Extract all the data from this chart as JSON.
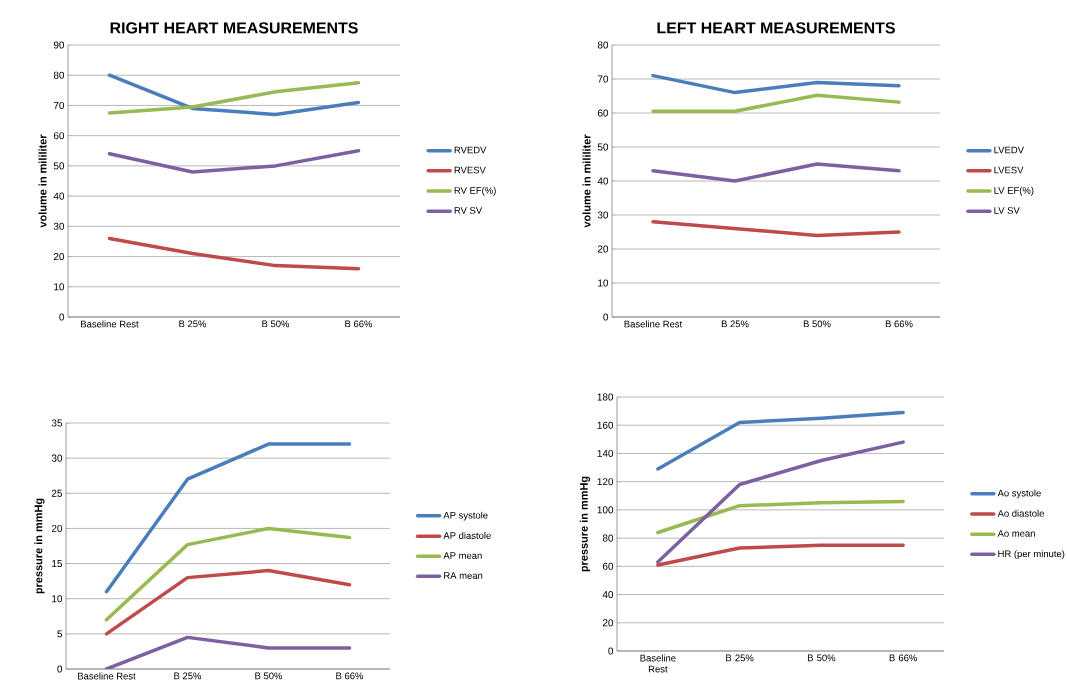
{
  "chart_data": [
    {
      "type": "line",
      "title": "RIGHT HEART MEASUREMENTS",
      "ylabel": "volume in mililiter",
      "categories": [
        "Baseline Rest",
        "B 25%",
        "B 50%",
        "B 66%"
      ],
      "ylim": [
        0,
        90
      ],
      "yticks": [
        0,
        10,
        20,
        30,
        40,
        50,
        60,
        70,
        80,
        90
      ],
      "grid": "y",
      "legend": "right",
      "marker": "none",
      "line_style": "solid",
      "series": [
        {
          "name": "RVEDV",
          "color": "#4a7ebb",
          "values": [
            80,
            69,
            67,
            71
          ]
        },
        {
          "name": "RVESV",
          "color": "#be4b48",
          "values": [
            26,
            21,
            17,
            16
          ]
        },
        {
          "name": "RV EF(%)",
          "color": "#98b954",
          "values": [
            67.5,
            69.5,
            74.5,
            77.5
          ]
        },
        {
          "name": "RV SV",
          "color": "#7d60a0",
          "values": [
            54,
            48,
            50,
            55
          ]
        }
      ]
    },
    {
      "type": "line",
      "title": "LEFT HEART MEASUREMENTS",
      "ylabel": "volume in mililiter",
      "categories": [
        "Baseline Rest",
        "B 25%",
        "B 50%",
        "B 66%"
      ],
      "ylim": [
        0,
        80
      ],
      "yticks": [
        0,
        10,
        20,
        30,
        40,
        50,
        60,
        70,
        80
      ],
      "grid": "y",
      "legend": "right",
      "marker": "none",
      "line_style": "solid",
      "series": [
        {
          "name": "LVEDV",
          "color": "#4a7ebb",
          "values": [
            71,
            66,
            69,
            68
          ]
        },
        {
          "name": "LVESV",
          "color": "#be4b48",
          "values": [
            28,
            26,
            24,
            25
          ]
        },
        {
          "name": "LV EF(%)",
          "color": "#98b954",
          "values": [
            60.5,
            60.5,
            65.2,
            63.2
          ]
        },
        {
          "name": "LV SV",
          "color": "#7d60a0",
          "values": [
            43,
            40,
            45,
            43
          ]
        }
      ]
    },
    {
      "type": "line",
      "ylabel": "pressure in mmHg",
      "categories": [
        "Baseline Rest",
        "B 25%",
        "B 50%",
        "B 66%"
      ],
      "ylim": [
        0,
        35
      ],
      "yticks": [
        0,
        5,
        10,
        15,
        20,
        25,
        30,
        35
      ],
      "grid": "y",
      "legend": "right",
      "marker": "none",
      "line_style": "solid",
      "series": [
        {
          "name": "AP systole",
          "color": "#4a7ebb",
          "values": [
            11,
            27,
            32,
            32
          ]
        },
        {
          "name": "AP diastole",
          "color": "#be4b48",
          "values": [
            5,
            13,
            14,
            12
          ]
        },
        {
          "name": "AP mean",
          "color": "#98b954",
          "values": [
            7,
            17.7,
            20,
            18.7
          ]
        },
        {
          "name": "RA mean",
          "color": "#7d60a0",
          "values": [
            0,
            4.5,
            3,
            3
          ]
        }
      ]
    },
    {
      "type": "line",
      "ylabel": "pressure in mmHg",
      "categories": [
        "Baseline Rest",
        "B 25%",
        "B 50%",
        "B 66%"
      ],
      "ylim": [
        0,
        180
      ],
      "yticks": [
        0,
        20,
        40,
        60,
        80,
        100,
        120,
        140,
        160,
        180
      ],
      "grid": "y",
      "legend": "right",
      "marker": "none",
      "line_style": "solid",
      "series": [
        {
          "name": "Ao systole",
          "color": "#4a7ebb",
          "values": [
            129,
            162,
            165,
            169
          ]
        },
        {
          "name": "Ao diastole",
          "color": "#be4b48",
          "values": [
            61,
            73,
            75,
            75
          ]
        },
        {
          "name": "Ao mean",
          "color": "#98b954",
          "values": [
            84,
            103,
            105,
            106
          ]
        },
        {
          "name": "HR (per minute)",
          "color": "#7d60a0",
          "values": [
            63,
            118,
            135,
            148
          ]
        }
      ]
    }
  ]
}
